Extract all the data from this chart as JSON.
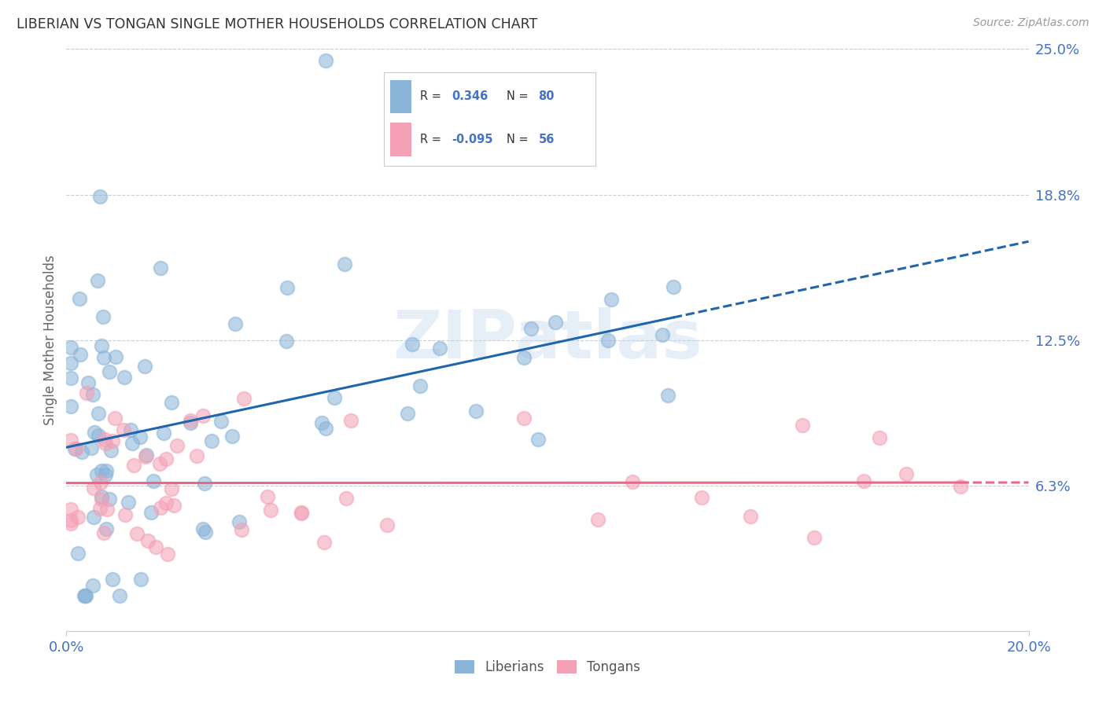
{
  "title": "LIBERIAN VS TONGAN SINGLE MOTHER HOUSEHOLDS CORRELATION CHART",
  "source": "Source: ZipAtlas.com",
  "ylabel": "Single Mother Households",
  "xlim": [
    0,
    0.2
  ],
  "ylim": [
    0,
    0.25
  ],
  "yticks": [
    0.0625,
    0.125,
    0.1875,
    0.25
  ],
  "ytick_labels": [
    "6.3%",
    "12.5%",
    "18.8%",
    "25.0%"
  ],
  "xtick_labels": [
    "0.0%",
    "20.0%"
  ],
  "xtick_positions": [
    0.0,
    0.2
  ],
  "liberian_color": "#8ab4d8",
  "tongan_color": "#f4a0b5",
  "liberian_line_color": "#2166ac",
  "tongan_line_color": "#e8688a",
  "R_liberian": 0.346,
  "N_liberian": 80,
  "R_tongan": -0.095,
  "N_tongan": 56,
  "watermark_text": "ZIPatlas",
  "background_color": "#ffffff",
  "grid_color": "#cccccc",
  "title_color": "#333333",
  "axis_label_color": "#666666",
  "tick_label_color": "#4472c4",
  "legend_label1": "Liberians",
  "legend_label2": "Tongans",
  "legend_R_color": "#333333",
  "legend_val_color": "#4472c4"
}
